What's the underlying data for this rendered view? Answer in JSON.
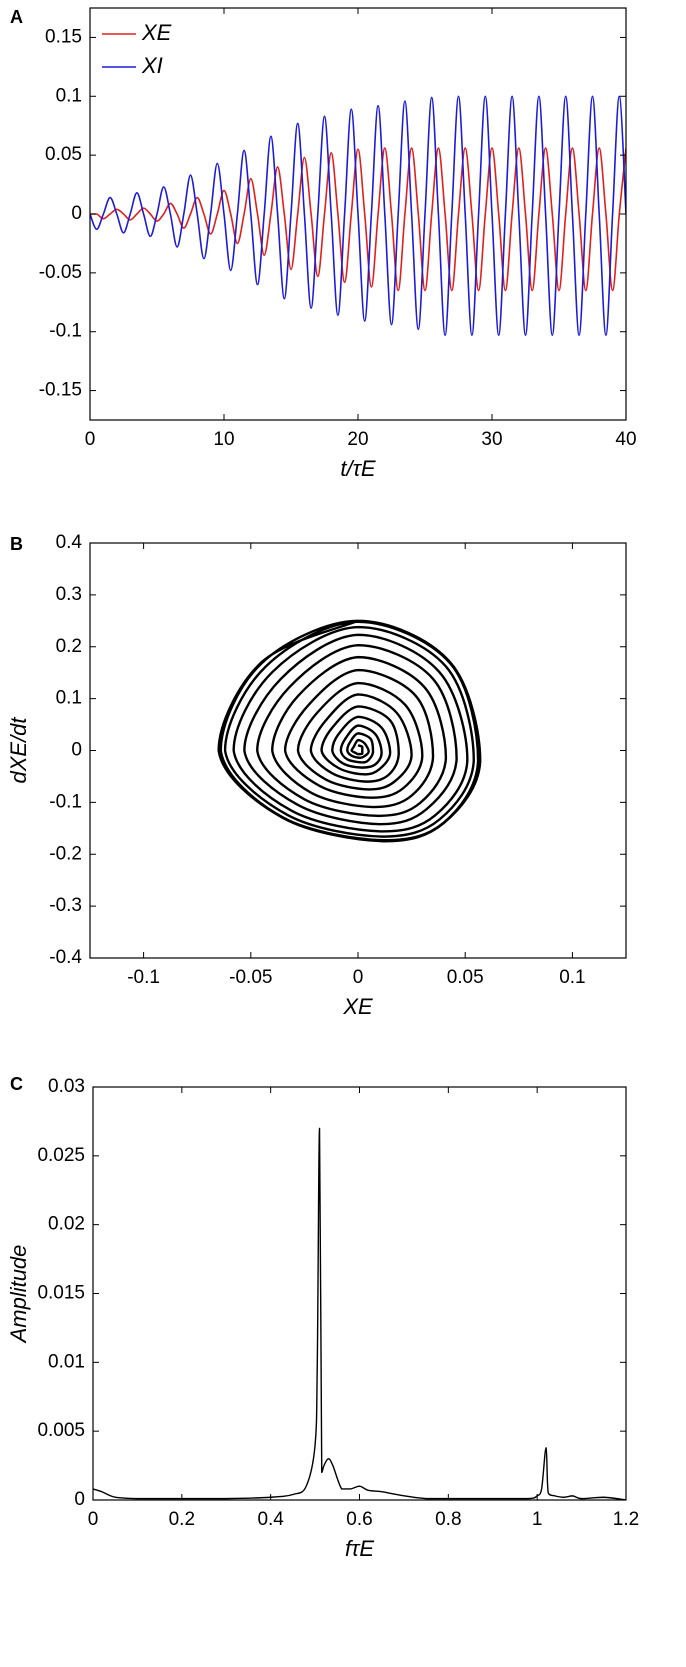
{
  "chart_data": [
    {
      "type": "line",
      "panel_label": "A",
      "x_label": "t/τE",
      "legend": "upper left",
      "x": [
        0,
        0.5,
        1,
        1.5,
        2,
        2.5,
        3,
        3.5,
        4,
        4.5,
        5,
        5.5,
        6,
        6.5,
        7,
        7.5,
        8,
        8.5,
        9,
        9.5,
        10,
        10.5,
        11,
        11.5,
        12,
        12.5,
        13,
        13.5,
        14,
        14.5,
        15,
        15.5,
        16,
        16.5,
        17,
        17.5,
        18,
        18.5,
        19,
        19.5,
        20,
        20.5,
        21,
        21.5,
        22,
        22.5,
        23,
        23.5,
        24,
        24.5,
        25,
        25.5,
        26,
        26.5,
        27,
        27.5,
        28,
        28.5,
        29,
        29.5,
        30,
        30.5,
        31,
        31.5,
        32,
        32.5,
        33,
        33.5,
        34,
        34.5,
        35,
        35.5,
        36,
        36.5,
        37,
        37.5,
        38,
        38.5,
        39,
        39.5,
        40
      ],
      "series": [
        {
          "name": "XE",
          "color": "#e0201c",
          "values": [
            0,
            0,
            -0.004,
            0,
            0.004,
            0,
            -0.005,
            0,
            0.005,
            0,
            -0.006,
            0,
            0.009,
            0,
            -0.012,
            0,
            0.014,
            0,
            -0.017,
            0,
            0.02,
            0,
            -0.025,
            0,
            0.03,
            0,
            -0.035,
            0,
            0.04,
            0,
            -0.047,
            0,
            0.048,
            0,
            -0.053,
            0,
            0.052,
            0,
            -0.058,
            0,
            0.055,
            0,
            -0.062,
            0,
            0.056,
            0,
            -0.065,
            0,
            0.056,
            0,
            -0.065,
            0,
            0.056,
            0,
            -0.065,
            0,
            0.056,
            0,
            -0.065,
            0,
            0.056,
            0,
            -0.065,
            0,
            0.056,
            0,
            -0.065,
            0,
            0.056,
            0,
            -0.065,
            0,
            0.056,
            0,
            -0.065,
            0,
            0.056,
            0,
            -0.065,
            0,
            0.056
          ]
        },
        {
          "name": "XI",
          "color": "#1c1cd8",
          "values": [
            0,
            -0.013,
            0,
            0.014,
            0,
            -0.016,
            0,
            0.018,
            0,
            -0.019,
            0,
            0.023,
            0,
            -0.028,
            0,
            0.033,
            0,
            -0.038,
            0,
            0.043,
            0,
            -0.048,
            0,
            0.054,
            0,
            -0.06,
            0,
            0.066,
            0,
            -0.072,
            0,
            0.077,
            0,
            -0.08,
            0,
            0.083,
            0,
            -0.086,
            0,
            0.089,
            0,
            -0.091,
            0,
            0.092,
            0,
            -0.094,
            0,
            0.096,
            0,
            -0.098,
            0,
            0.099,
            0,
            -0.103,
            0,
            0.1,
            0,
            -0.103,
            0,
            0.1,
            0,
            -0.103,
            0,
            0.1,
            0,
            -0.103,
            0,
            0.1,
            0,
            -0.103,
            0,
            0.1,
            0,
            -0.103,
            0,
            0.1,
            0,
            -0.103,
            0,
            0.1,
            0
          ]
        }
      ],
      "xlim": [
        0,
        40
      ],
      "xticks": [
        0,
        10,
        20,
        30,
        40
      ],
      "ylim": [
        -0.175,
        0.175
      ],
      "yticks": [
        -0.15,
        -0.1,
        -0.05,
        0,
        0.05,
        0.1,
        0.15
      ]
    },
    {
      "type": "line",
      "panel_label": "B",
      "x_label": "XE",
      "y_label": "dXE/dt",
      "color": "#000000",
      "x": [
        0,
        0.002,
        0.002,
        0.002,
        0,
        -0.001,
        -0.003,
        -0.002,
        0,
        0.003,
        0.005,
        0.003,
        0.001,
        -0.003,
        -0.005,
        -0.004,
        0,
        0.006,
        0.007,
        0.005,
        0.002,
        -0.005,
        -0.008,
        -0.006,
        0,
        0.008,
        0.011,
        0.008,
        0.002,
        -0.007,
        -0.012,
        -0.009,
        0,
        0.011,
        0.015,
        0.01,
        0.003,
        -0.009,
        -0.017,
        -0.012,
        0,
        0.015,
        0.019,
        0.014,
        0.004,
        -0.012,
        -0.022,
        -0.015,
        0,
        0.018,
        0.025,
        0.017,
        0.005,
        -0.015,
        -0.028,
        -0.019,
        0,
        0.022,
        0.03,
        0.021,
        0.006,
        -0.018,
        -0.034,
        -0.023,
        0,
        0.027,
        0.035,
        0.025,
        0.007,
        -0.022,
        -0.04,
        -0.028,
        0,
        0.031,
        0.041,
        0.029,
        0.009,
        -0.025,
        -0.047,
        -0.032,
        0,
        0.035,
        0.046,
        0.032,
        0.01,
        -0.028,
        -0.053,
        -0.036,
        0,
        0.038,
        0.051,
        0.036,
        0.011,
        -0.031,
        -0.058,
        -0.04,
        0,
        0.041,
        0.054,
        0.038,
        0.011,
        -0.033,
        -0.062,
        -0.043,
        0,
        0.043,
        0.056,
        0.04,
        0.012,
        -0.035,
        -0.064,
        -0.045,
        0,
        0.043,
        0.057,
        0.04,
        0.012,
        -0.035,
        -0.065,
        -0.045,
        0
      ],
      "values": [
        0.01,
        0.007,
        -0.001,
        -0.006,
        -0.007,
        -0.005,
        0,
        0.007,
        0.02,
        0.014,
        -0.002,
        -0.011,
        -0.014,
        -0.01,
        0,
        0.014,
        0.033,
        0.022,
        -0.003,
        -0.018,
        -0.023,
        -0.017,
        0,
        0.022,
        0.048,
        0.032,
        -0.004,
        -0.027,
        -0.033,
        -0.025,
        0,
        0.032,
        0.065,
        0.044,
        -0.005,
        -0.036,
        -0.046,
        -0.034,
        0,
        0.044,
        0.085,
        0.058,
        -0.007,
        -0.048,
        -0.06,
        -0.044,
        0,
        0.058,
        0.108,
        0.073,
        -0.009,
        -0.06,
        -0.075,
        -0.056,
        0,
        0.073,
        0.13,
        0.088,
        -0.01,
        -0.073,
        -0.091,
        -0.068,
        0,
        0.088,
        0.155,
        0.105,
        -0.012,
        -0.087,
        -0.109,
        -0.081,
        0,
        0.105,
        0.18,
        0.122,
        -0.014,
        -0.101,
        -0.126,
        -0.094,
        0,
        0.122,
        0.203,
        0.138,
        -0.016,
        -0.113,
        -0.142,
        -0.105,
        0,
        0.138,
        0.223,
        0.151,
        -0.018,
        -0.125,
        -0.156,
        -0.116,
        0,
        0.151,
        0.238,
        0.162,
        -0.019,
        -0.133,
        -0.166,
        -0.124,
        0,
        0.162,
        0.248,
        0.168,
        -0.02,
        -0.139,
        -0.173,
        -0.129,
        0,
        0.168,
        0.25,
        0.17,
        -0.02,
        -0.14,
        -0.175,
        -0.13,
        0,
        0.17,
        0.25
      ],
      "xlim": [
        -0.125,
        0.125
      ],
      "xticks": [
        -0.1,
        -0.05,
        0,
        0.05,
        0.1
      ],
      "ylim": [
        -0.4,
        0.4
      ],
      "yticks": [
        -0.4,
        -0.3,
        -0.2,
        -0.1,
        0,
        0.1,
        0.2,
        0.3,
        0.4
      ]
    },
    {
      "type": "line",
      "panel_label": "C",
      "x_label": "fτE",
      "y_label": "Amplitude",
      "color": "#000000",
      "x": [
        0,
        0.02,
        0.05,
        0.1,
        0.2,
        0.3,
        0.4,
        0.45,
        0.48,
        0.5,
        0.505,
        0.51,
        0.515,
        0.52,
        0.53,
        0.54,
        0.56,
        0.58,
        0.6,
        0.62,
        0.65,
        0.7,
        0.75,
        0.8,
        0.9,
        0.98,
        1.0,
        1.01,
        1.02,
        1.025,
        1.04,
        1.06,
        1.08,
        1.1,
        1.15,
        1.2
      ],
      "values": [
        0.0008,
        0.0006,
        0.0002,
        0.0001,
        0.0001,
        0.0001,
        0.0002,
        0.0004,
        0.001,
        0.004,
        0.01,
        0.027,
        0.002,
        0.0025,
        0.003,
        0.0025,
        0.0008,
        0.0008,
        0.001,
        0.0007,
        0.0006,
        0.0003,
        0.0001,
        0.0001,
        0.0001,
        0.0001,
        0.0003,
        0.0008,
        0.0038,
        0.0005,
        0.0003,
        0.0002,
        0.0003,
        0.0001,
        0.0002,
        0
      ],
      "xlim": [
        0,
        1.2
      ],
      "xticks": [
        0,
        0.2,
        0.4,
        0.6,
        0.8,
        1,
        1.2
      ],
      "ylim": [
        0,
        0.03
      ],
      "yticks": [
        0,
        0.005,
        0.01,
        0.015,
        0.02,
        0.025,
        0.03
      ]
    }
  ]
}
